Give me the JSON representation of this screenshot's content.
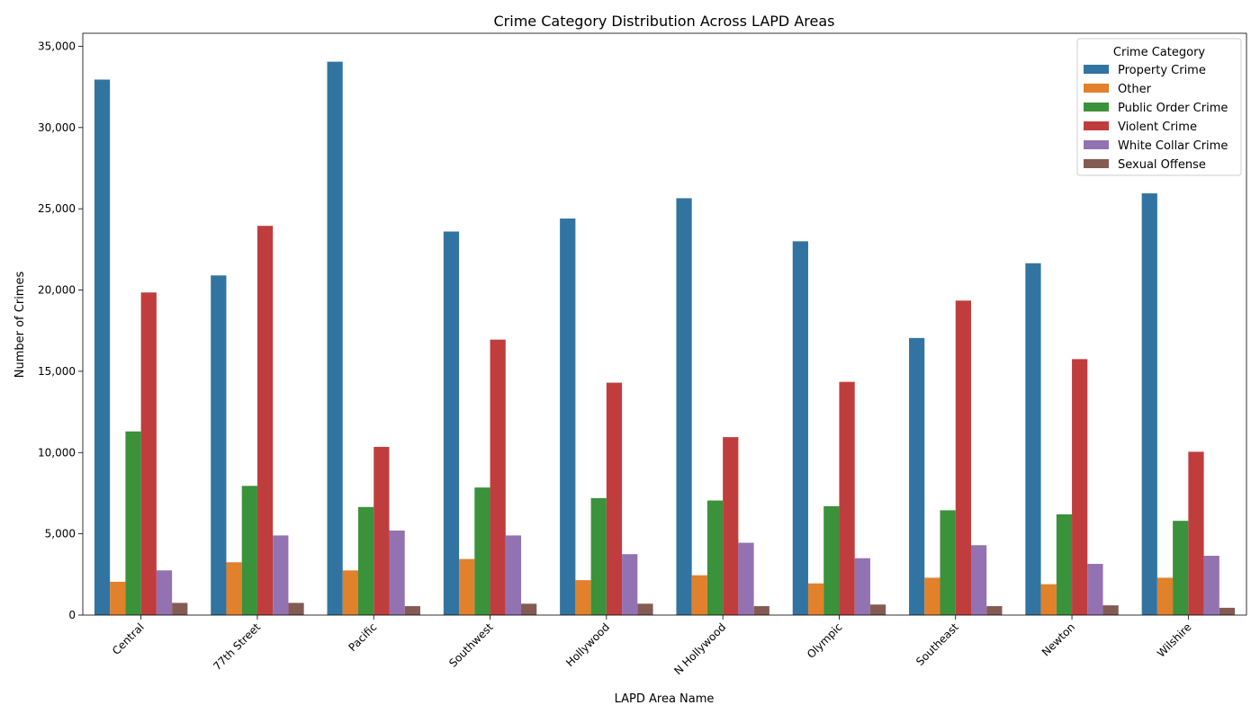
{
  "chart_data": {
    "type": "bar",
    "title": "Crime Category Distribution Across LAPD Areas",
    "xlabel": "LAPD Area Name",
    "ylabel": "Number of Crimes",
    "ylim": [
      0,
      35800
    ],
    "yticks": [
      0,
      5000,
      10000,
      15000,
      20000,
      25000,
      30000,
      35000
    ],
    "ytick_labels": [
      "0",
      "5,000",
      "10,000",
      "15,000",
      "20,000",
      "25,000",
      "30,000",
      "35,000"
    ],
    "grid": false,
    "legend": {
      "title": "Crime Category",
      "placement": "top-right"
    },
    "categories": [
      "Central",
      "77th Street",
      "Pacific",
      "Southwest",
      "Hollywood",
      "N Hollywood",
      "Olympic",
      "Southeast",
      "Newton",
      "Wilshire"
    ],
    "series": [
      {
        "name": "Property Crime",
        "color": "#3274a1",
        "values": [
          32950,
          20900,
          34050,
          23600,
          24400,
          25650,
          23000,
          17050,
          21650,
          25950
        ]
      },
      {
        "name": "Other",
        "color": "#e1812c",
        "values": [
          2050,
          3250,
          2750,
          3450,
          2150,
          2450,
          1950,
          2300,
          1900,
          2300
        ]
      },
      {
        "name": "Public Order Crime",
        "color": "#3a923a",
        "values": [
          11300,
          7950,
          6650,
          7850,
          7200,
          7050,
          6700,
          6450,
          6200,
          5800
        ]
      },
      {
        "name": "Violent Crime",
        "color": "#c03d3e",
        "values": [
          19850,
          23950,
          10350,
          16950,
          14300,
          10950,
          14350,
          19350,
          15750,
          10050
        ]
      },
      {
        "name": "White Collar Crime",
        "color": "#9372b2",
        "values": [
          2750,
          4900,
          5200,
          4900,
          3750,
          4450,
          3500,
          4300,
          3150,
          3650
        ]
      },
      {
        "name": "Sexual Offense",
        "color": "#845b53",
        "values": [
          750,
          750,
          550,
          700,
          700,
          550,
          650,
          550,
          600,
          450
        ]
      }
    ]
  }
}
